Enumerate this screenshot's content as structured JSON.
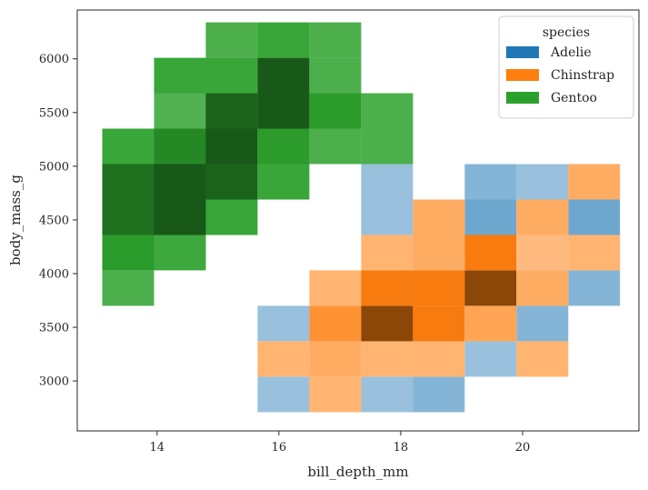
{
  "chart_data": {
    "type": "heatmap",
    "title": "",
    "xlabel": "bill_depth_mm",
    "ylabel": "body_mass_g",
    "xlim": [
      12.69,
      21.91
    ],
    "ylim": [
      2535,
      6455
    ],
    "bin_width_x": 0.85,
    "bin_height_y": 330,
    "xticks": [
      14,
      16,
      18,
      20
    ],
    "yticks": [
      3000,
      3500,
      4000,
      4500,
      5000,
      5500,
      6000
    ],
    "grid": false,
    "legend": {
      "title": "species",
      "placement": "top-right",
      "entries": [
        {
          "label": "Adelie",
          "color": "#1f77b4"
        },
        {
          "label": "Chinstrap",
          "color": "#ff7f0e"
        },
        {
          "label": "Gentoo",
          "color": "#2ca02c"
        }
      ]
    },
    "cells": [
      {
        "species": "Gentoo",
        "x0": 13.1,
        "y0": 3700,
        "alpha": 0.72
      },
      {
        "species": "Gentoo",
        "x0": 13.1,
        "y0": 4030,
        "alpha": 0.86
      },
      {
        "species": "Gentoo",
        "x0": 13.1,
        "y0": 4360,
        "alpha": 0.95
      },
      {
        "species": "Gentoo",
        "x0": 13.1,
        "y0": 4690,
        "alpha": 0.95
      },
      {
        "species": "Gentoo",
        "x0": 13.1,
        "y0": 5020,
        "alpha": 0.8
      },
      {
        "species": "Gentoo",
        "x0": 13.95,
        "y0": 4030,
        "alpha": 0.78
      },
      {
        "species": "Gentoo",
        "x0": 13.95,
        "y0": 4360,
        "alpha": 1.0
      },
      {
        "species": "Gentoo",
        "x0": 13.95,
        "y0": 4690,
        "alpha": 1.0
      },
      {
        "species": "Gentoo",
        "x0": 13.95,
        "y0": 5020,
        "alpha": 0.9
      },
      {
        "species": "Gentoo",
        "x0": 13.95,
        "y0": 5350,
        "alpha": 0.7
      },
      {
        "species": "Gentoo",
        "x0": 13.95,
        "y0": 5680,
        "alpha": 0.8
      },
      {
        "species": "Gentoo",
        "x0": 14.8,
        "y0": 4360,
        "alpha": 0.8
      },
      {
        "species": "Gentoo",
        "x0": 14.8,
        "y0": 4690,
        "alpha": 0.98
      },
      {
        "species": "Gentoo",
        "x0": 14.8,
        "y0": 5020,
        "alpha": 1.0
      },
      {
        "species": "Gentoo",
        "x0": 14.8,
        "y0": 5350,
        "alpha": 0.98
      },
      {
        "species": "Gentoo",
        "x0": 14.8,
        "y0": 5680,
        "alpha": 0.8
      },
      {
        "species": "Gentoo",
        "x0": 14.8,
        "y0": 6010,
        "alpha": 0.72
      },
      {
        "species": "Gentoo",
        "x0": 15.65,
        "y0": 4690,
        "alpha": 0.8
      },
      {
        "species": "Gentoo",
        "x0": 15.65,
        "y0": 5020,
        "alpha": 0.86
      },
      {
        "species": "Gentoo",
        "x0": 15.65,
        "y0": 5350,
        "alpha": 1.0
      },
      {
        "species": "Gentoo",
        "x0": 15.65,
        "y0": 5680,
        "alpha": 1.0
      },
      {
        "species": "Gentoo",
        "x0": 15.65,
        "y0": 6010,
        "alpha": 0.8
      },
      {
        "species": "Gentoo",
        "x0": 16.5,
        "y0": 5020,
        "alpha": 0.72
      },
      {
        "species": "Gentoo",
        "x0": 16.5,
        "y0": 5350,
        "alpha": 0.86
      },
      {
        "species": "Gentoo",
        "x0": 16.5,
        "y0": 5680,
        "alpha": 0.72
      },
      {
        "species": "Gentoo",
        "x0": 16.5,
        "y0": 6010,
        "alpha": 0.72
      },
      {
        "species": "Gentoo",
        "x0": 17.35,
        "y0": 5020,
        "alpha": 0.72
      },
      {
        "species": "Gentoo",
        "x0": 17.35,
        "y0": 5350,
        "alpha": 0.72
      },
      {
        "species": "Adelie",
        "x0": 15.65,
        "y0": 2710,
        "alpha": 0.42
      },
      {
        "species": "Adelie",
        "x0": 15.65,
        "y0": 3370,
        "alpha": 0.42
      },
      {
        "species": "Adelie",
        "x0": 17.35,
        "y0": 2710,
        "alpha": 0.42
      },
      {
        "species": "Adelie",
        "x0": 17.35,
        "y0": 4360,
        "alpha": 0.42
      },
      {
        "species": "Adelie",
        "x0": 17.35,
        "y0": 4690,
        "alpha": 0.42
      },
      {
        "species": "Adelie",
        "x0": 18.2,
        "y0": 2710,
        "alpha": 0.5
      },
      {
        "species": "Adelie",
        "x0": 19.05,
        "y0": 3040,
        "alpha": 0.42
      },
      {
        "species": "Adelie",
        "x0": 19.05,
        "y0": 4360,
        "alpha": 0.6
      },
      {
        "species": "Adelie",
        "x0": 19.05,
        "y0": 4690,
        "alpha": 0.5
      },
      {
        "species": "Adelie",
        "x0": 19.9,
        "y0": 3370,
        "alpha": 0.5
      },
      {
        "species": "Adelie",
        "x0": 19.9,
        "y0": 4690,
        "alpha": 0.42
      },
      {
        "species": "Adelie",
        "x0": 20.75,
        "y0": 3700,
        "alpha": 0.5
      },
      {
        "species": "Adelie",
        "x0": 20.75,
        "y0": 4360,
        "alpha": 0.6
      },
      {
        "species": "Chinstrap",
        "x0": 16.5,
        "y0": 2710,
        "alpha": 0.5
      },
      {
        "species": "Chinstrap",
        "x0": 16.5,
        "y0": 3040,
        "alpha": 0.55
      },
      {
        "species": "Chinstrap",
        "x0": 16.5,
        "y0": 3370,
        "alpha": 0.72
      },
      {
        "species": "Chinstrap",
        "x0": 16.5,
        "y0": 3700,
        "alpha": 0.5
      },
      {
        "species": "Chinstrap",
        "x0": 15.65,
        "y0": 3040,
        "alpha": 0.5
      },
      {
        "species": "Chinstrap",
        "x0": 17.35,
        "y0": 3040,
        "alpha": 0.5
      },
      {
        "species": "Chinstrap",
        "x0": 17.35,
        "y0": 3370,
        "alpha": 1.0
      },
      {
        "species": "Chinstrap",
        "x0": 17.35,
        "y0": 3700,
        "alpha": 0.86
      },
      {
        "species": "Chinstrap",
        "x0": 17.35,
        "y0": 4030,
        "alpha": 0.5
      },
      {
        "species": "Chinstrap",
        "x0": 18.2,
        "y0": 3040,
        "alpha": 0.5
      },
      {
        "species": "Chinstrap",
        "x0": 18.2,
        "y0": 3370,
        "alpha": 0.86
      },
      {
        "species": "Chinstrap",
        "x0": 18.2,
        "y0": 3700,
        "alpha": 0.86
      },
      {
        "species": "Chinstrap",
        "x0": 18.2,
        "y0": 4030,
        "alpha": 0.55
      },
      {
        "species": "Chinstrap",
        "x0": 18.2,
        "y0": 4360,
        "alpha": 0.55
      },
      {
        "species": "Chinstrap",
        "x0": 19.05,
        "y0": 3370,
        "alpha": 0.6
      },
      {
        "species": "Chinstrap",
        "x0": 19.05,
        "y0": 3700,
        "alpha": 1.0
      },
      {
        "species": "Chinstrap",
        "x0": 19.05,
        "y0": 4030,
        "alpha": 0.86
      },
      {
        "species": "Chinstrap",
        "x0": 19.9,
        "y0": 3040,
        "alpha": 0.5
      },
      {
        "species": "Chinstrap",
        "x0": 19.9,
        "y0": 3700,
        "alpha": 0.55
      },
      {
        "species": "Chinstrap",
        "x0": 19.9,
        "y0": 4030,
        "alpha": 0.45
      },
      {
        "species": "Chinstrap",
        "x0": 19.9,
        "y0": 4360,
        "alpha": 0.55
      },
      {
        "species": "Chinstrap",
        "x0": 20.75,
        "y0": 4030,
        "alpha": 0.5
      },
      {
        "species": "Chinstrap",
        "x0": 20.75,
        "y0": 4690,
        "alpha": 0.55
      }
    ]
  }
}
